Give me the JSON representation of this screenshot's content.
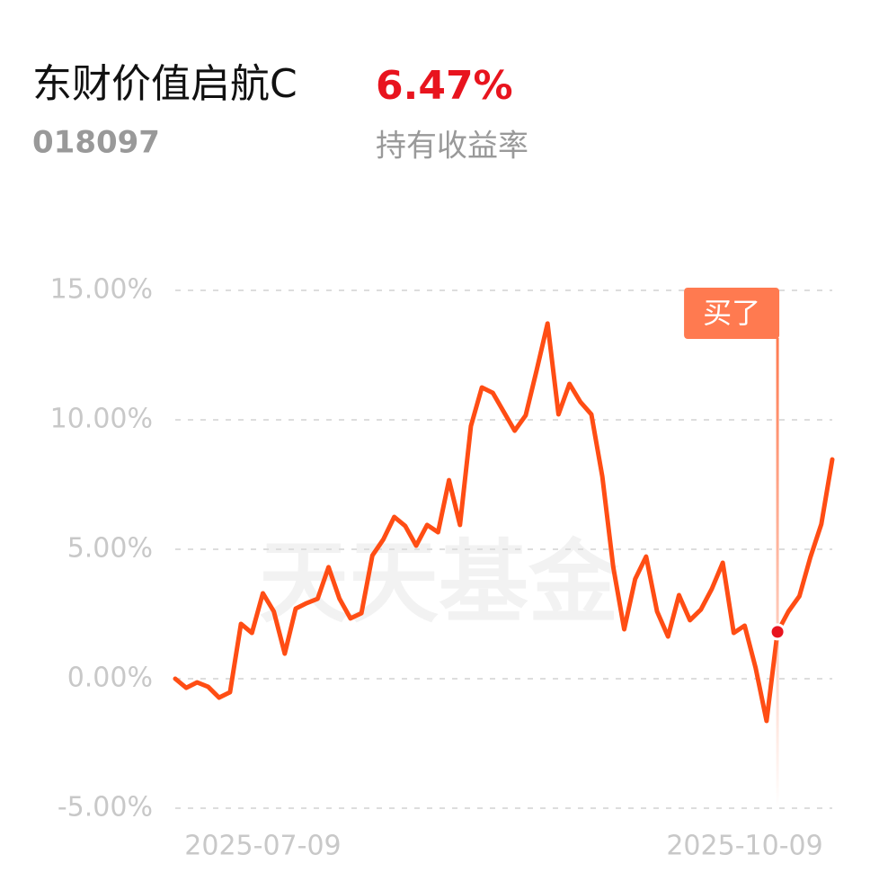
{
  "header": {
    "title": "东财价值启航C",
    "code": "018097",
    "return": "6.47%",
    "return_label": "持有收益率"
  },
  "watermark": "天天基金",
  "chart_data": {
    "type": "line",
    "color": "#ff4d14",
    "categories": [
      null,
      null,
      null,
      null,
      null,
      null,
      null,
      null,
      "2025-07-09",
      null,
      null,
      null,
      null,
      null,
      null,
      null,
      null,
      null,
      null,
      null,
      null,
      null,
      null,
      null,
      null,
      null,
      null,
      null,
      null,
      null,
      null,
      null,
      null,
      null,
      null,
      null,
      null,
      null,
      null,
      null,
      null,
      null,
      null,
      null,
      null,
      null,
      null,
      null,
      null,
      null,
      null,
      null,
      "2025-10-09",
      null,
      null,
      null,
      null,
      null,
      null,
      null,
      null
    ],
    "values": [
      0.0,
      -0.35,
      -0.14,
      -0.31,
      -0.73,
      -0.52,
      2.12,
      1.77,
      3.3,
      2.6,
      0.97,
      2.71,
      2.92,
      3.09,
      4.31,
      3.09,
      2.33,
      2.53,
      4.76,
      5.38,
      6.25,
      5.9,
      5.14,
      5.94,
      5.66,
      7.67,
      5.94,
      9.76,
      11.25,
      11.04,
      10.31,
      9.58,
      10.17,
      11.91,
      13.72,
      10.21,
      11.39,
      10.69,
      10.21,
      7.81,
      4.31,
      1.91,
      3.85,
      4.72,
      2.6,
      1.63,
      3.23,
      2.26,
      2.67,
      3.47,
      4.48,
      1.77,
      2.05,
      0.42,
      -1.63,
      1.81,
      2.6,
      3.19,
      4.69,
      5.97,
      8.47
    ],
    "ylim": [
      -5,
      15
    ],
    "yticks": [
      {
        "value": -5,
        "label": "-5.00%"
      },
      {
        "value": 0,
        "label": "0.00%"
      },
      {
        "value": 5,
        "label": "5.00%"
      },
      {
        "value": 10,
        "label": "10.00%"
      },
      {
        "value": 15,
        "label": "15.00%"
      }
    ],
    "grid": true,
    "annotations": [
      {
        "text": "买了",
        "index": 55
      }
    ]
  }
}
